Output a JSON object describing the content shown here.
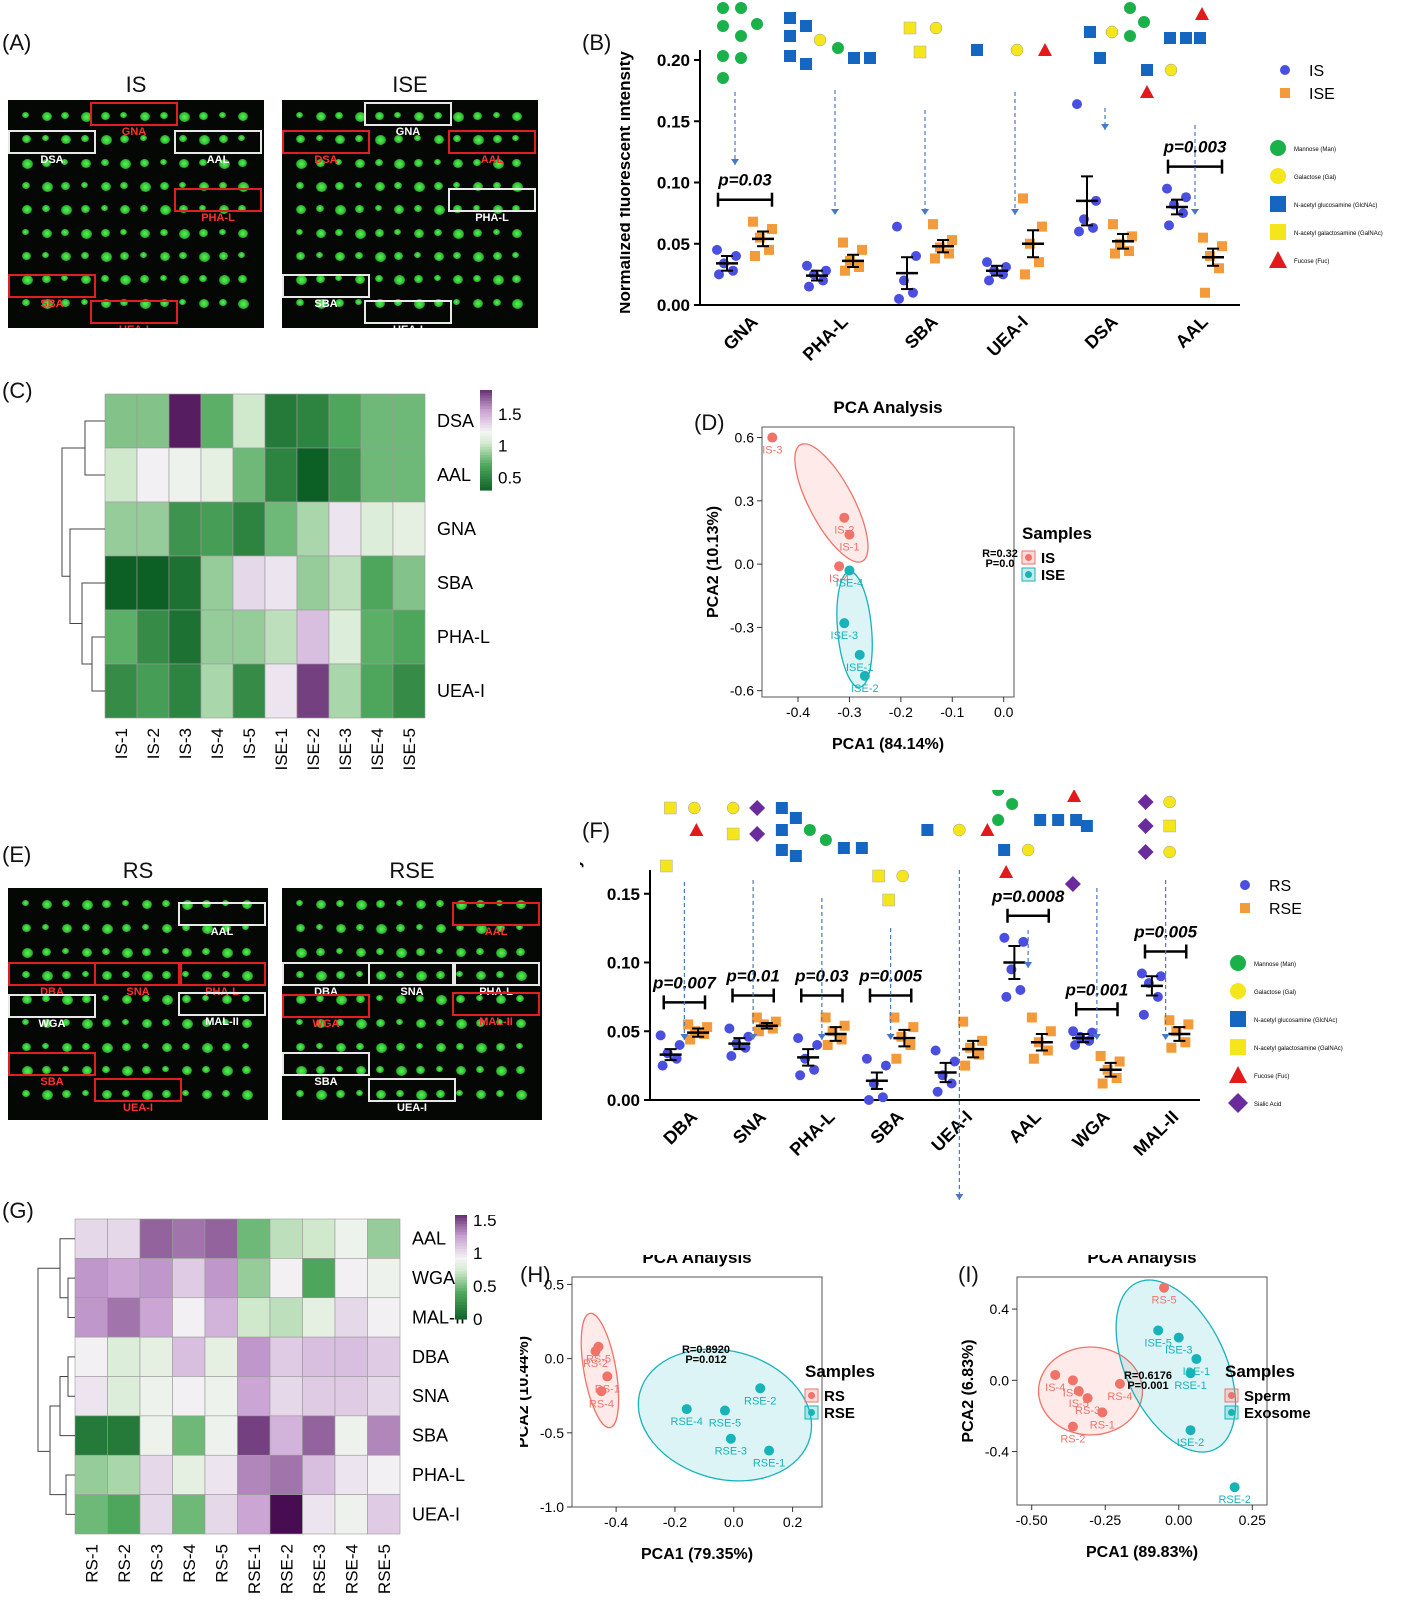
{
  "panel_labels": [
    "(A)",
    "(B)",
    "(C)",
    "(D)",
    "(E)",
    "(F)",
    "(G)",
    "(H)",
    "(I)"
  ],
  "panelA": {
    "left_title": "IS",
    "right_title": "ISE",
    "left_boxes": [
      {
        "label": "GNA",
        "color": "red"
      },
      {
        "label": "DSA",
        "color": "white"
      },
      {
        "label": "AAL",
        "color": "white"
      },
      {
        "label": "PHA-L",
        "color": "red"
      },
      {
        "label": "SBA",
        "color": "red"
      },
      {
        "label": "UEA-I",
        "color": "red"
      }
    ],
    "right_boxes": [
      {
        "label": "GNA",
        "color": "white"
      },
      {
        "label": "DSA",
        "color": "red"
      },
      {
        "label": "AAL",
        "color": "red"
      },
      {
        "label": "PHA-L",
        "color": "white"
      },
      {
        "label": "SBA",
        "color": "white"
      },
      {
        "label": "UEA-I",
        "color": "white"
      }
    ]
  },
  "panelE": {
    "left_title": "RS",
    "right_title": "RSE",
    "left_boxes": [
      {
        "label": "AAL",
        "color": "white"
      },
      {
        "label": "DBA",
        "color": "red"
      },
      {
        "label": "SNA",
        "color": "red"
      },
      {
        "label": "PHA-L",
        "color": "red"
      },
      {
        "label": "WGA",
        "color": "white"
      },
      {
        "label": "MAL-II",
        "color": "white"
      },
      {
        "label": "SBA",
        "color": "red"
      },
      {
        "label": "UEA-I",
        "color": "red"
      }
    ],
    "right_boxes": [
      {
        "label": "AAL",
        "color": "red"
      },
      {
        "label": "DBA",
        "color": "white"
      },
      {
        "label": "SNA",
        "color": "white"
      },
      {
        "label": "PHA-L",
        "color": "white"
      },
      {
        "label": "WGA",
        "color": "red"
      },
      {
        "label": "MAL-II",
        "color": "red"
      },
      {
        "label": "SBA",
        "color": "white"
      },
      {
        "label": "UEA-I",
        "color": "white"
      }
    ]
  },
  "glycan_legend": [
    {
      "label": "Mannose (Man)",
      "shape": "circle",
      "color": "#1ab04a"
    },
    {
      "label": "Galactose (Gal)",
      "shape": "circle",
      "color": "#f5e51b"
    },
    {
      "label": "N-acetyl glucosamine (GlcNAc)",
      "shape": "square",
      "color": "#1466c0"
    },
    {
      "label": "N-acetyl galactosamine (GalNAc)",
      "shape": "square",
      "color": "#f5e51b"
    },
    {
      "label": "Fucose (Fuc)",
      "shape": "triangle",
      "color": "#e31a1c"
    },
    {
      "label": "Sialic Acid",
      "shape": "diamond",
      "color": "#6a2c9c"
    }
  ],
  "colors": {
    "group1_dot": "#4b4fe0",
    "group2_sq": "#f39a3a",
    "pca_red": "#f0736a",
    "pca_cyan": "#17b3b9"
  },
  "chart_data": [
    {
      "id": "B",
      "type": "scatter",
      "ylabel": "Normalized fluorescent intensity",
      "ylim": [
        0,
        0.2
      ],
      "yticks": [
        "0.00",
        "0.05",
        "0.10",
        "0.15",
        "0.20"
      ],
      "categories": [
        "GNA",
        "PHA-L",
        "SBA",
        "UEA-I",
        "DSA",
        "AAL"
      ],
      "series": [
        {
          "name": "IS",
          "mean": [
            0.034,
            0.024,
            0.026,
            0.028,
            0.085,
            0.08
          ],
          "sem": [
            0.006,
            0.004,
            0.013,
            0.004,
            0.02,
            0.006
          ],
          "points": [
            [
              0.025,
              0.028,
              0.034,
              0.04,
              0.045
            ],
            [
              0.015,
              0.02,
              0.025,
              0.028,
              0.032
            ],
            [
              0.005,
              0.01,
              0.02,
              0.04,
              0.064
            ],
            [
              0.02,
              0.025,
              0.028,
              0.031,
              0.035
            ],
            [
              0.06,
              0.063,
              0.07,
              0.085,
              0.164
            ],
            [
              0.065,
              0.075,
              0.082,
              0.088,
              0.095
            ]
          ]
        },
        {
          "name": "ISE",
          "mean": [
            0.054,
            0.036,
            0.048,
            0.05,
            0.052,
            0.039
          ],
          "sem": [
            0.006,
            0.005,
            0.005,
            0.011,
            0.006,
            0.007
          ],
          "points": [
            [
              0.04,
              0.045,
              0.055,
              0.062,
              0.068
            ],
            [
              0.028,
              0.031,
              0.036,
              0.045,
              0.051
            ],
            [
              0.038,
              0.042,
              0.047,
              0.053,
              0.066
            ],
            [
              0.025,
              0.035,
              0.05,
              0.064,
              0.087
            ],
            [
              0.042,
              0.044,
              0.05,
              0.056,
              0.066
            ],
            [
              0.01,
              0.03,
              0.04,
              0.048,
              0.055
            ]
          ]
        }
      ],
      "pvalues": [
        {
          "cat": 0,
          "text": "p=0.03"
        },
        {
          "cat": 5,
          "text": "p=0.003"
        }
      ],
      "legend": [
        "IS",
        "ISE"
      ]
    },
    {
      "id": "C",
      "type": "heatmap",
      "columns": [
        "IS-1",
        "IS-2",
        "IS-3",
        "IS-4",
        "IS-5",
        "ISE-1",
        "ISE-2",
        "ISE-3",
        "ISE-4",
        "ISE-5"
      ],
      "rows": [
        "DSA",
        "AAL",
        "GNA",
        "SBA",
        "PHA-L",
        "UEA-I"
      ],
      "values": [
        [
          0.85,
          0.85,
          1.95,
          0.75,
          1.05,
          0.45,
          0.5,
          0.7,
          0.8,
          0.8
        ],
        [
          1.05,
          1.25,
          1.2,
          1.15,
          0.8,
          0.5,
          0.2,
          0.6,
          0.8,
          0.8
        ],
        [
          0.9,
          0.9,
          0.6,
          0.65,
          0.5,
          0.8,
          0.95,
          1.3,
          1.1,
          1.15
        ],
        [
          0.25,
          0.2,
          0.4,
          0.9,
          1.35,
          1.3,
          0.9,
          1.0,
          0.7,
          0.85
        ],
        [
          0.75,
          0.55,
          0.4,
          0.9,
          0.9,
          1.0,
          1.45,
          1.1,
          0.75,
          0.7
        ],
        [
          0.55,
          0.65,
          0.5,
          0.95,
          0.55,
          1.3,
          1.85,
          0.95,
          0.7,
          0.55
        ]
      ],
      "scale": {
        "min": 0.3,
        "max": 2.0,
        "ticks": [
          "2",
          "1.5",
          "1",
          "0.5"
        ]
      }
    },
    {
      "id": "D",
      "type": "scatter",
      "title": "PCA Analysis",
      "xlabel": "PCA1 (84.14%)",
      "ylabel": "PCA2 (10.13%)",
      "xlim": [
        -0.47,
        0.02
      ],
      "ylim": [
        -0.63,
        0.65
      ],
      "xticks": [
        "-0.4",
        "-0.3",
        "-0.2",
        "-0.1",
        "0.0"
      ],
      "yticks": [
        "0.6",
        "0.3",
        "0.0",
        "-0.3",
        "-0.6"
      ],
      "legend_title": "Samples",
      "legend": [
        "IS",
        "ISE"
      ],
      "stat_text": [
        "R=0.32",
        "P=0.0"
      ],
      "points": [
        {
          "label": "IS-3",
          "group": 0,
          "x": -0.45,
          "y": 0.6
        },
        {
          "label": "IS-2",
          "group": 0,
          "x": -0.31,
          "y": 0.22
        },
        {
          "label": "IS-1",
          "group": 0,
          "x": -0.3,
          "y": 0.14
        },
        {
          "label": "IS-4",
          "group": 0,
          "x": -0.32,
          "y": -0.01
        },
        {
          "label": "ISE-4",
          "group": 1,
          "x": -0.3,
          "y": -0.03
        },
        {
          "label": "ISE-3",
          "group": 1,
          "x": -0.31,
          "y": -0.28
        },
        {
          "label": "ISE-1",
          "group": 1,
          "x": -0.28,
          "y": -0.43
        },
        {
          "label": "ISE-2",
          "group": 1,
          "x": -0.27,
          "y": -0.53
        }
      ]
    },
    {
      "id": "F",
      "type": "scatter",
      "ylabel": "Normalized fluorescent intensity",
      "ylim": [
        0,
        0.16
      ],
      "yticks": [
        "0.00",
        "0.05",
        "0.10",
        "0.15"
      ],
      "categories": [
        "DBA",
        "SNA",
        "PHA-L",
        "SBA",
        "UEA-I",
        "AAL",
        "WGA",
        "MAL-II"
      ],
      "series": [
        {
          "name": "RS",
          "mean": [
            0.033,
            0.041,
            0.031,
            0.014,
            0.02,
            0.1,
            0.045,
            0.083
          ],
          "sem": [
            0.004,
            0.004,
            0.006,
            0.006,
            0.007,
            0.012,
            0.003,
            0.007
          ],
          "points": [
            [
              0.025,
              0.03,
              0.034,
              0.04,
              0.047
            ],
            [
              0.032,
              0.038,
              0.041,
              0.046,
              0.052
            ],
            [
              0.018,
              0.022,
              0.03,
              0.04,
              0.045
            ],
            [
              0.0,
              0.002,
              0.012,
              0.025,
              0.03
            ],
            [
              0.006,
              0.012,
              0.018,
              0.028,
              0.036
            ],
            [
              0.075,
              0.08,
              0.095,
              0.115,
              0.118
            ],
            [
              0.04,
              0.043,
              0.046,
              0.049,
              0.05
            ],
            [
              0.062,
              0.075,
              0.085,
              0.09,
              0.092
            ]
          ]
        },
        {
          "name": "RSE",
          "mean": [
            0.049,
            0.054,
            0.048,
            0.045,
            0.037,
            0.042,
            0.022,
            0.048
          ],
          "sem": [
            0.003,
            0.002,
            0.005,
            0.006,
            0.006,
            0.006,
            0.005,
            0.005
          ],
          "points": [
            [
              0.044,
              0.048,
              0.05,
              0.053,
              0.055
            ],
            [
              0.05,
              0.052,
              0.055,
              0.057,
              0.06
            ],
            [
              0.04,
              0.044,
              0.05,
              0.054,
              0.06
            ],
            [
              0.03,
              0.04,
              0.046,
              0.053,
              0.06
            ],
            [
              0.025,
              0.033,
              0.038,
              0.043,
              0.057
            ],
            [
              0.03,
              0.036,
              0.042,
              0.05,
              0.06
            ],
            [
              0.012,
              0.016,
              0.022,
              0.028,
              0.032
            ],
            [
              0.038,
              0.042,
              0.05,
              0.055,
              0.058
            ]
          ]
        }
      ],
      "pvalues": [
        {
          "cat": 0,
          "text": "p=0.007"
        },
        {
          "cat": 1,
          "text": "p=0.01"
        },
        {
          "cat": 2,
          "text": "p=0.03"
        },
        {
          "cat": 3,
          "text": "p=0.005"
        },
        {
          "cat": 5,
          "text": "p=0.0008"
        },
        {
          "cat": 6,
          "text": "p=0.001"
        },
        {
          "cat": 7,
          "text": "p=0.005"
        }
      ],
      "legend": [
        "RS",
        "RSE"
      ]
    },
    {
      "id": "G",
      "type": "heatmap",
      "columns": [
        "RS-1",
        "RS-2",
        "RS-3",
        "RS-4",
        "RS-5",
        "RSE-1",
        "RSE-2",
        "RSE-3",
        "RSE-4",
        "RSE-5"
      ],
      "rows": [
        "AAL",
        "WGA",
        "MAL-II",
        "DBA",
        "SNA",
        "SBA",
        "PHA-L",
        "UEA-I"
      ],
      "values": [
        [
          1.05,
          1.05,
          1.45,
          1.4,
          1.45,
          0.5,
          0.7,
          0.75,
          0.9,
          0.6
        ],
        [
          1.3,
          1.25,
          1.3,
          1.1,
          1.3,
          0.6,
          0.95,
          0.4,
          0.95,
          0.9
        ],
        [
          1.3,
          1.4,
          1.25,
          0.95,
          1.2,
          0.75,
          0.7,
          0.85,
          1.05,
          0.95
        ],
        [
          0.95,
          0.8,
          0.85,
          1.15,
          0.85,
          1.3,
          1.1,
          1.15,
          1.15,
          1.1
        ],
        [
          1.0,
          0.8,
          0.9,
          0.95,
          0.9,
          1.25,
          1.05,
          1.1,
          1.1,
          1.05
        ],
        [
          0.15,
          0.15,
          0.9,
          0.5,
          0.9,
          1.55,
          1.2,
          1.45,
          0.9,
          1.35
        ],
        [
          0.6,
          0.65,
          1.05,
          0.85,
          1.0,
          1.35,
          1.4,
          1.15,
          1.0,
          0.95
        ],
        [
          0.5,
          0.4,
          1.05,
          0.5,
          1.05,
          1.25,
          1.8,
          1.0,
          0.9,
          1.1
        ]
      ],
      "scale": {
        "min": 0.0,
        "max": 1.7,
        "ticks": [
          "1.5",
          "1",
          "0.5",
          "0"
        ]
      }
    },
    {
      "id": "H",
      "type": "scatter",
      "title": "PCA Analysis",
      "xlabel": "PCA1 (79.35%)",
      "ylabel": "PCA2 (10.44%)",
      "xlim": [
        -0.55,
        0.3
      ],
      "ylim": [
        -1.0,
        0.55
      ],
      "xticks": [
        "-0.4",
        "-0.2",
        "0.0",
        "0.2"
      ],
      "yticks": [
        "0.5",
        "0.0",
        "-0.5",
        "-1.0"
      ],
      "legend_title": "Samples",
      "legend": [
        "RS",
        "RSE"
      ],
      "stat_text": [
        "R=0.8920",
        "P=0.012"
      ],
      "points": [
        {
          "label": "RS-2",
          "group": 0,
          "x": -0.47,
          "y": 0.05
        },
        {
          "label": "RS-5",
          "group": 0,
          "x": -0.46,
          "y": 0.08
        },
        {
          "label": "RS-1",
          "group": 0,
          "x": -0.43,
          "y": -0.12
        },
        {
          "label": "RS-4",
          "group": 0,
          "x": -0.45,
          "y": -0.22
        },
        {
          "label": "RSE-4",
          "group": 1,
          "x": -0.16,
          "y": -0.34
        },
        {
          "label": "RSE-5",
          "group": 1,
          "x": -0.03,
          "y": -0.35
        },
        {
          "label": "RSE-2",
          "group": 1,
          "x": 0.09,
          "y": -0.2
        },
        {
          "label": "RSE-3",
          "group": 1,
          "x": -0.01,
          "y": -0.54
        },
        {
          "label": "RSE-1",
          "group": 1,
          "x": 0.12,
          "y": -0.62
        }
      ]
    },
    {
      "id": "I",
      "type": "scatter",
      "title": "PCA Analysis",
      "xlabel": "PCA1 (89.83%)",
      "ylabel": "PCA2 (6.83%)",
      "xlim": [
        -0.55,
        0.3
      ],
      "ylim": [
        -0.7,
        0.58
      ],
      "xticks": [
        "-0.50",
        "-0.25",
        "0.00",
        "0.25"
      ],
      "yticks": [
        "0.4",
        "0.0",
        "-0.4"
      ],
      "legend_title": "Samples",
      "legend": [
        "Sperm",
        "Exosome"
      ],
      "stat_text": [
        "R=0.6176",
        "P=0.001"
      ],
      "points": [
        {
          "label": "RS-5",
          "group": 0,
          "x": -0.05,
          "y": 0.52
        },
        {
          "label": "IS-4",
          "group": 0,
          "x": -0.42,
          "y": 0.03
        },
        {
          "label": "IS-3",
          "group": 0,
          "x": -0.36,
          "y": 0.0
        },
        {
          "label": "IS-5",
          "group": 0,
          "x": -0.34,
          "y": -0.06
        },
        {
          "label": "RS-4",
          "group": 0,
          "x": -0.2,
          "y": -0.02
        },
        {
          "label": "RS-3",
          "group": 0,
          "x": -0.31,
          "y": -0.1
        },
        {
          "label": "RS-1",
          "group": 0,
          "x": -0.26,
          "y": -0.18
        },
        {
          "label": "RS-2",
          "group": 0,
          "x": -0.36,
          "y": -0.26
        },
        {
          "label": "ISE-5",
          "group": 1,
          "x": -0.07,
          "y": 0.28
        },
        {
          "label": "ISE-3",
          "group": 1,
          "x": 0.0,
          "y": 0.24
        },
        {
          "label": "ISE-1",
          "group": 1,
          "x": 0.06,
          "y": 0.12
        },
        {
          "label": "RSE-1",
          "group": 1,
          "x": 0.04,
          "y": 0.04
        },
        {
          "label": "ISE-2",
          "group": 1,
          "x": 0.04,
          "y": -0.28
        },
        {
          "label": "RSE-2",
          "group": 1,
          "x": 0.19,
          "y": -0.6
        }
      ]
    }
  ]
}
